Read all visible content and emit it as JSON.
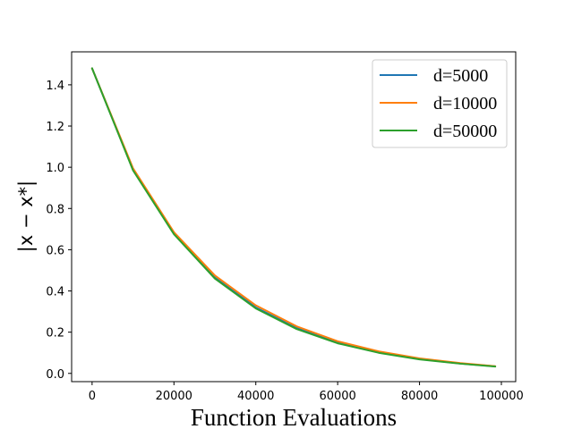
{
  "chart_data": {
    "type": "line",
    "title": "",
    "xlabel": "Function Evaluations",
    "ylabel": "|x − x*|",
    "xlim": [
      -5000,
      103500
    ],
    "ylim": [
      -0.04,
      1.56
    ],
    "xticks": [
      0,
      20000,
      40000,
      60000,
      80000,
      100000
    ],
    "xtick_labels": [
      "0",
      "20000",
      "40000",
      "60000",
      "80000",
      "100000"
    ],
    "yticks": [
      0.0,
      0.2,
      0.4,
      0.6,
      0.8,
      1.0,
      1.2,
      1.4
    ],
    "ytick_labels": [
      "0.0",
      "0.2",
      "0.4",
      "0.6",
      "0.8",
      "1.0",
      "1.2",
      "1.4"
    ],
    "grid": false,
    "legend_position": "top-right",
    "x": [
      0,
      10000,
      20000,
      30000,
      40000,
      50000,
      60000,
      70000,
      80000,
      90000,
      98500
    ],
    "series": [
      {
        "name": "d=5000",
        "color": "#1f77b4",
        "values": [
          1.48,
          0.99,
          0.68,
          0.465,
          0.32,
          0.22,
          0.15,
          0.103,
          0.07,
          0.048,
          0.034
        ]
      },
      {
        "name": "d=10000",
        "color": "#ff7f0e",
        "values": [
          1.48,
          0.995,
          0.685,
          0.475,
          0.33,
          0.228,
          0.156,
          0.107,
          0.073,
          0.05,
          0.035
        ]
      },
      {
        "name": "d=50000",
        "color": "#2ca02c",
        "values": [
          1.48,
          0.985,
          0.675,
          0.46,
          0.315,
          0.215,
          0.146,
          0.1,
          0.068,
          0.047,
          0.033
        ]
      }
    ]
  }
}
